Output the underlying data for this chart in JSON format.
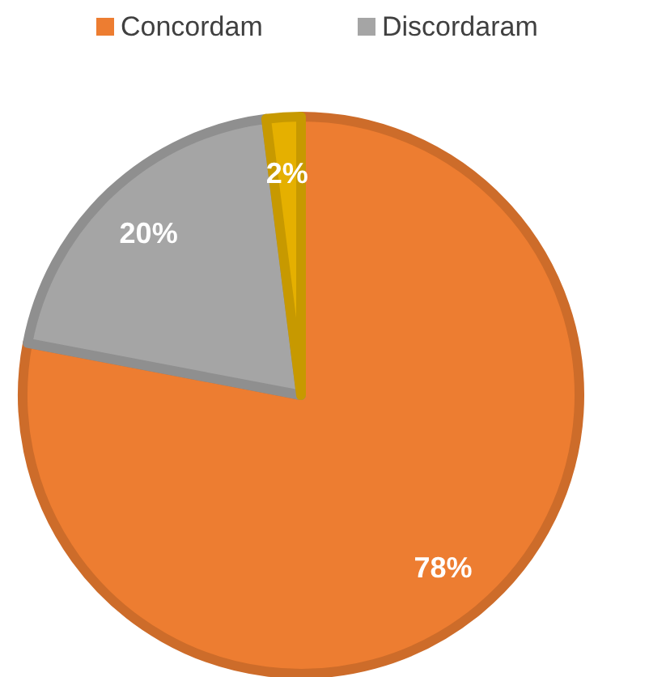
{
  "chart_data": {
    "type": "pie",
    "categories": [
      "Concordam",
      "Discordaram",
      null
    ],
    "values": [
      78,
      20,
      2
    ],
    "colors": [
      "#ed7d31",
      "#a5a5a5",
      "#e5b000"
    ],
    "value_labels": [
      "78%",
      "20%",
      "2%"
    ],
    "legend": "top"
  }
}
